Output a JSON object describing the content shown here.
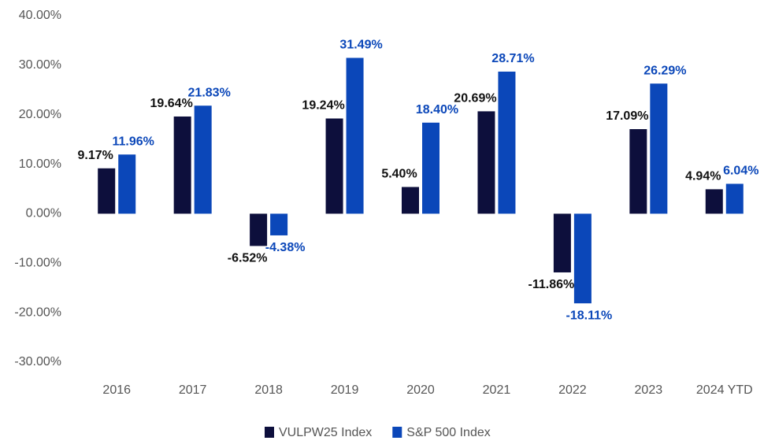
{
  "chart_data": {
    "type": "bar",
    "categories": [
      "2016",
      "2017",
      "2018",
      "2019",
      "2020",
      "2021",
      "2022",
      "2023",
      "2024 YTD"
    ],
    "series": [
      {
        "name": "VULPW25 Index",
        "color": "#0d0f3c",
        "values": [
          9.17,
          19.64,
          -6.52,
          19.24,
          5.4,
          20.69,
          -11.86,
          17.09,
          4.94
        ],
        "value_labels": [
          "9.17%",
          "19.64%",
          "-6.52%",
          "19.24%",
          "5.40%",
          "20.69%",
          "-11.86%",
          "17.09%",
          "4.94%"
        ]
      },
      {
        "name": "S&P 500 Index",
        "color": "#0b47b9",
        "values": [
          11.96,
          21.83,
          -4.38,
          31.49,
          18.4,
          28.71,
          -18.11,
          26.29,
          6.04
        ],
        "value_labels": [
          "11.96%",
          "21.83%",
          "-4.38%",
          "31.49%",
          "18.40%",
          "28.71%",
          "-18.11%",
          "26.29%",
          "6.04%"
        ]
      }
    ],
    "ylim": [
      -30,
      40
    ],
    "yticks": [
      {
        "value": -30,
        "label": "-30.00%"
      },
      {
        "value": -20,
        "label": "-20.00%"
      },
      {
        "value": -10,
        "label": "-10.00%"
      },
      {
        "value": 0,
        "label": "0.00%"
      },
      {
        "value": 10,
        "label": "10.00%"
      },
      {
        "value": 20,
        "label": "20.00%"
      },
      {
        "value": 30,
        "label": "30.00%"
      },
      {
        "value": 40,
        "label": "40.00%"
      }
    ],
    "grid": false,
    "legend": "bottom"
  }
}
